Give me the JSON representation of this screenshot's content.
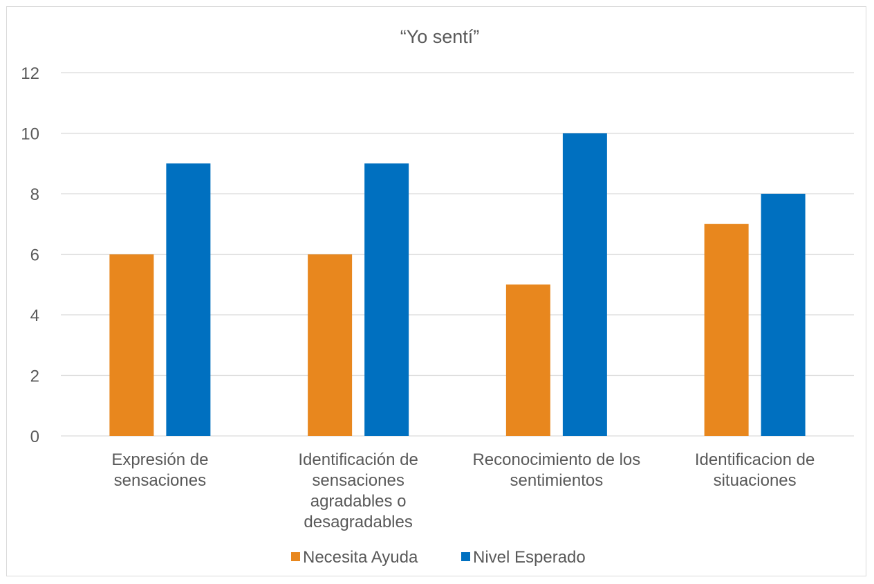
{
  "chart_data": {
    "type": "bar",
    "title": "“Yo sentí”",
    "categories": [
      [
        "Expresión de",
        "sensaciones"
      ],
      [
        "Identificación de",
        "sensaciones",
        "agradables o",
        "desagradables"
      ],
      [
        "Reconocimiento de los",
        "sentimientos"
      ],
      [
        "Identificacion de",
        "situaciones"
      ]
    ],
    "series": [
      {
        "name": "Necesita Ayuda",
        "values": [
          6,
          6,
          5,
          7
        ],
        "color": "#e8871e"
      },
      {
        "name": "Nivel Esperado",
        "values": [
          9,
          9,
          10,
          8
        ],
        "color": "#0070c0"
      }
    ],
    "ylim": [
      0,
      12
    ],
    "yticks": [
      0,
      2,
      4,
      6,
      8,
      10,
      12
    ],
    "grid": true,
    "legend_position": "bottom"
  }
}
